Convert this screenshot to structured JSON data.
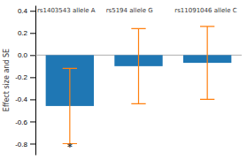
{
  "chart_data": {
    "type": "bar",
    "categories": [
      "rs1403543 allele A",
      "rs5194 allele G",
      "rs11091046 allele C"
    ],
    "values": [
      -0.46,
      -0.1,
      -0.07
    ],
    "errors": [
      0.34,
      0.34,
      0.33
    ],
    "y_label": "Effect size and SE",
    "annotations": [
      {
        "text": "*",
        "x": "rs1403543 allele A",
        "y": -0.83
      }
    ],
    "ylim": [
      -0.9,
      0.45
    ],
    "yticks": [
      -0.8,
      -0.6,
      -0.4,
      -0.2,
      {
        "value": 0.0,
        "label": "0.0"
      },
      0.2,
      0.4
    ],
    "grid": false
  }
}
